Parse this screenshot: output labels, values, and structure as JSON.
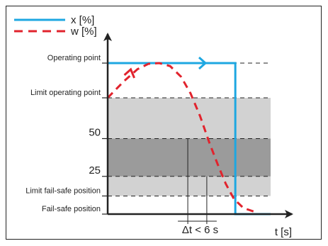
{
  "chart_data": {
    "type": "line",
    "title": "",
    "xlabel": "t [s]",
    "ylabel": "",
    "legend": {
      "placement": "top-left",
      "entries": [
        {
          "name": "x [%]",
          "color": "#1ea7e1",
          "style": "solid"
        },
        {
          "name": "w [%]",
          "color": "#e1232d",
          "style": "dashed"
        }
      ]
    },
    "y_levels": [
      {
        "label": "Operating point",
        "value": 100
      },
      {
        "label": "Limit operating point",
        "value": 77
      },
      {
        "label": "50",
        "value": 50
      },
      {
        "label": "25",
        "value": 25
      },
      {
        "label": "Limit fail-safe position",
        "value": 12
      },
      {
        "label": "Fail-safe position",
        "value": 0
      }
    ],
    "bands": [
      {
        "from": 12,
        "to": 77,
        "color": "#d2d2d2"
      },
      {
        "from": 25,
        "to": 50,
        "color": "#9b9b9b"
      }
    ],
    "series": [
      {
        "name": "x [%]",
        "x": [
          0,
          9.4,
          9.4,
          12
        ],
        "values": [
          100,
          100,
          0,
          0
        ]
      },
      {
        "name": "w [%]",
        "x": [
          0,
          1.2,
          2.2,
          3.0,
          3.8,
          4.6,
          5.4,
          6.1,
          6.8,
          7.5,
          8.1,
          8.7,
          9.3,
          10.0,
          11.0
        ],
        "values": [
          77,
          88,
          96,
          99.5,
          100,
          98,
          91,
          80,
          65,
          47,
          33,
          20,
          10,
          4,
          1
        ]
      }
    ],
    "xlim": [
      0,
      12
    ],
    "ylim": [
      0,
      100
    ],
    "annotations": [
      {
        "text": "Δt < 6 s",
        "x_from": 5.9,
        "x_to": 7.3
      }
    ],
    "grid": false
  }
}
